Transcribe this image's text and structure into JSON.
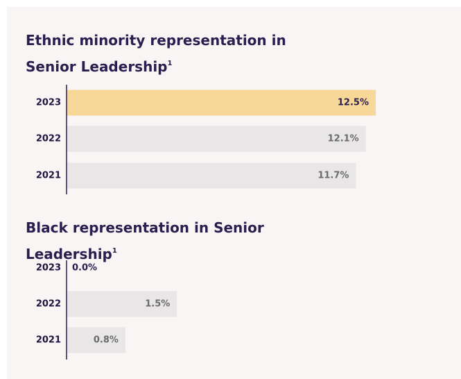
{
  "chart_data": [
    {
      "type": "hbar",
      "title": "Ethnic minority representation in Senior Leadership",
      "footnote": "1",
      "categories": [
        "2023",
        "2022",
        "2021"
      ],
      "values": [
        12.5,
        12.1,
        11.7
      ],
      "value_labels": [
        "12.5%",
        "12.1%",
        "11.7%"
      ],
      "colors": [
        "#f8d898",
        "#e8e6e6",
        "#e8e6e6"
      ],
      "label_colors": [
        "#2a1e4f",
        "#6b6b6b",
        "#6b6b6b"
      ],
      "xlim": [
        0,
        12.5
      ]
    },
    {
      "type": "hbar",
      "title": "Black representation in Senior Leadership",
      "footnote": "1",
      "categories": [
        "2023",
        "2022",
        "2021"
      ],
      "values": [
        0.0,
        1.5,
        0.8
      ],
      "value_labels": [
        "0.0%",
        "1.5%",
        "0.8%"
      ],
      "colors": [
        "#e8e6e6",
        "#e8e6e6",
        "#e8e6e6"
      ],
      "label_colors": [
        "#2a1e4f",
        "#6b6b6b",
        "#6b6b6b"
      ],
      "xlim": [
        0,
        4.2
      ]
    }
  ]
}
